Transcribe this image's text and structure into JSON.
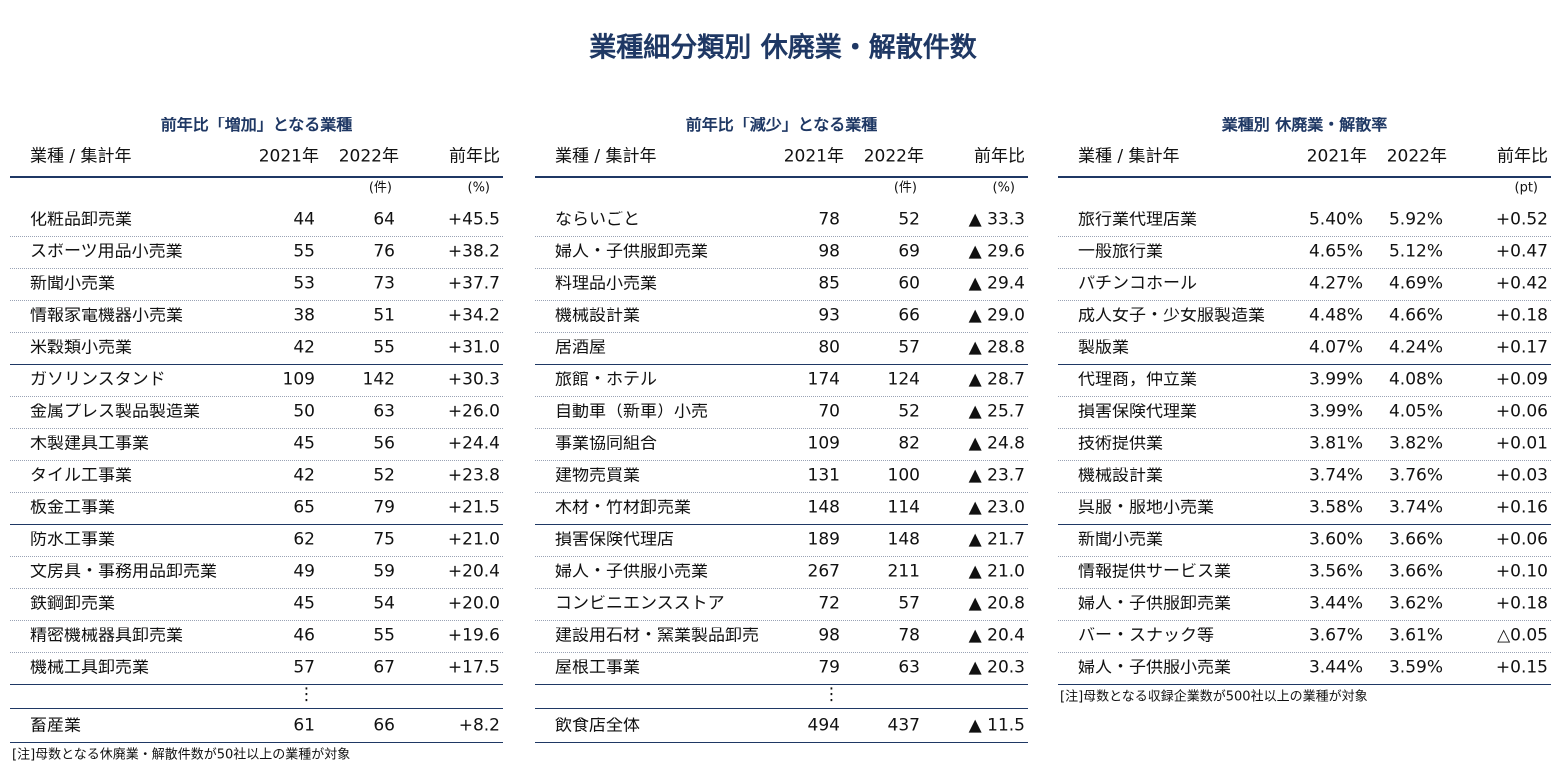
{
  "title": "業種細分類別 休廃業・解散件数",
  "tables": [
    {
      "subtitle": "前年比「増加」となる業種",
      "headers": [
        "業種 / 集計年",
        "2021年",
        "2022年",
        "前年比"
      ],
      "unit_count": "(件)",
      "unit_change": "(%)",
      "rows": [
        [
          "化粧品卸売業",
          "44",
          "64",
          "+45.5"
        ],
        [
          "スポーツ用品小売業",
          "55",
          "76",
          "+38.2"
        ],
        [
          "新聞小売業",
          "53",
          "73",
          "+37.7"
        ],
        [
          "情報家電機器小売業",
          "38",
          "51",
          "+34.2"
        ],
        [
          "米穀類小売業",
          "42",
          "55",
          "+31.0"
        ],
        [
          "ガソリンスタンド",
          "109",
          "142",
          "+30.3"
        ],
        [
          "金属プレス製品製造業",
          "50",
          "63",
          "+26.0"
        ],
        [
          "木製建具工事業",
          "45",
          "56",
          "+24.4"
        ],
        [
          "タイル工事業",
          "42",
          "52",
          "+23.8"
        ],
        [
          "板金工事業",
          "65",
          "79",
          "+21.5"
        ],
        [
          "防水工事業",
          "62",
          "75",
          "+21.0"
        ],
        [
          "文房具・事務用品卸売業",
          "49",
          "59",
          "+20.4"
        ],
        [
          "鉄鋼卸売業",
          "45",
          "54",
          "+20.0"
        ],
        [
          "精密機械器具卸売業",
          "46",
          "55",
          "+19.6"
        ],
        [
          "機械工具卸売業",
          "57",
          "67",
          "+17.5"
        ]
      ],
      "ellipsis": "⋮",
      "total": [
        "畜産業",
        "61",
        "66",
        "+8.2"
      ],
      "note": "[注]母数となる休廃業・解散件数が50社以上の業種が対象"
    },
    {
      "subtitle": "前年比「減少」となる業種",
      "headers": [
        "業種 / 集計年",
        "2021年",
        "2022年",
        "前年比"
      ],
      "unit_count": "(件)",
      "unit_change": "(%)",
      "rows": [
        [
          "ならいごと",
          "78",
          "52",
          "▲ 33.3"
        ],
        [
          "婦人・子供服卸売業",
          "98",
          "69",
          "▲ 29.6"
        ],
        [
          "料理品小売業",
          "85",
          "60",
          "▲ 29.4"
        ],
        [
          "機械設計業",
          "93",
          "66",
          "▲ 29.0"
        ],
        [
          "居酒屋",
          "80",
          "57",
          "▲ 28.8"
        ],
        [
          "旅館・ホテル",
          "174",
          "124",
          "▲ 28.7"
        ],
        [
          "自動車（新車）小売",
          "70",
          "52",
          "▲ 25.7"
        ],
        [
          "事業協同組合",
          "109",
          "82",
          "▲ 24.8"
        ],
        [
          "建物売買業",
          "131",
          "100",
          "▲ 23.7"
        ],
        [
          "木材・竹材卸売業",
          "148",
          "114",
          "▲ 23.0"
        ],
        [
          "損害保険代理店",
          "189",
          "148",
          "▲ 21.7"
        ],
        [
          "婦人・子供服小売業",
          "267",
          "211",
          "▲ 21.0"
        ],
        [
          "コンビニエンスストア",
          "72",
          "57",
          "▲ 20.8"
        ],
        [
          "建設用石材・窯業製品卸売",
          "98",
          "78",
          "▲ 20.4"
        ],
        [
          "屋根工事業",
          "79",
          "63",
          "▲ 20.3"
        ]
      ],
      "ellipsis": "⋮",
      "total": [
        "飲食店全体",
        "494",
        "437",
        "▲ 11.5"
      ]
    },
    {
      "subtitle": "業種別 休廃業・解散率",
      "headers": [
        "業種 / 集計年",
        "2021年",
        "2022年",
        "前年比"
      ],
      "unit_change": "(pt)",
      "rows": [
        [
          "旅行業代理店業",
          "5.40%",
          "5.92%",
          "+0.52"
        ],
        [
          "一般旅行業",
          "4.65%",
          "5.12%",
          "+0.47"
        ],
        [
          "パチンコホール",
          "4.27%",
          "4.69%",
          "+0.42"
        ],
        [
          "成人女子・少女服製造業",
          "4.48%",
          "4.66%",
          "+0.18"
        ],
        [
          "製版業",
          "4.07%",
          "4.24%",
          "+0.17"
        ],
        [
          "代理商，仲立業",
          "3.99%",
          "4.08%",
          "+0.09"
        ],
        [
          "損害保険代理業",
          "3.99%",
          "4.05%",
          "+0.06"
        ],
        [
          "技術提供業",
          "3.81%",
          "3.82%",
          "+0.01"
        ],
        [
          "機械設計業",
          "3.74%",
          "3.76%",
          "+0.03"
        ],
        [
          "呉服・服地小売業",
          "3.58%",
          "3.74%",
          "+0.16"
        ],
        [
          "新聞小売業",
          "3.60%",
          "3.66%",
          "+0.06"
        ],
        [
          "情報提供サービス業",
          "3.56%",
          "3.66%",
          "+0.10"
        ],
        [
          "婦人・子供服卸売業",
          "3.44%",
          "3.62%",
          "+0.18"
        ],
        [
          "バー・スナック等",
          "3.67%",
          "3.61%",
          "△0.05"
        ],
        [
          "婦人・子供服小売業",
          "3.44%",
          "3.59%",
          "+0.15"
        ]
      ],
      "note": "[注]母数となる収録企業数が500社以上の業種が対象"
    }
  ]
}
